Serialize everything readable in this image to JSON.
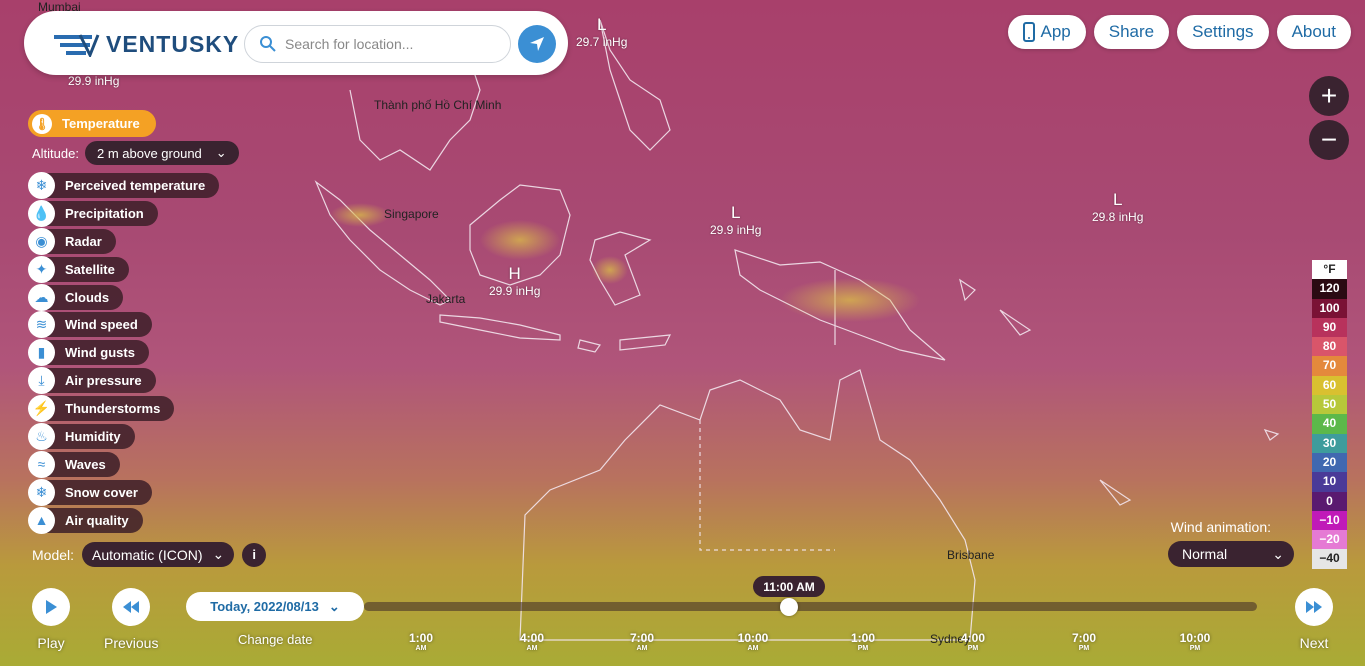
{
  "header": {
    "logo_text": "VENTUSKY",
    "search_placeholder": "Search for location...",
    "nav": [
      {
        "label": "App",
        "icon": "phone-icon"
      },
      {
        "label": "Share"
      },
      {
        "label": "Settings"
      },
      {
        "label": "About"
      }
    ]
  },
  "zoom": {
    "in": "+",
    "out": "−"
  },
  "map": {
    "cities": [
      "Mumbai",
      "Thành phố Hồ Chí Minh",
      "Singapore",
      "Jakarta",
      "Brisbane",
      "Sydney"
    ],
    "pressure_systems": [
      {
        "letter": "L",
        "value": "29.7 inHg"
      },
      {
        "letter": "",
        "value": "29.9 inHg"
      },
      {
        "letter": "L",
        "value": "29.9 inHg"
      },
      {
        "letter": "L",
        "value": "29.8 inHg"
      },
      {
        "letter": "H",
        "value": "29.9 inHg"
      }
    ]
  },
  "sidebar": {
    "active_layer": "Temperature",
    "altitude_label": "Altitude:",
    "altitude_value": "2 m above ground",
    "layers": [
      "Perceived temperature",
      "Precipitation",
      "Radar",
      "Satellite",
      "Clouds",
      "Wind speed",
      "Wind gusts",
      "Air pressure",
      "Thunderstorms",
      "Humidity",
      "Waves",
      "Snow cover",
      "Air quality"
    ],
    "model_label": "Model:",
    "model_value": "Automatic (ICON)",
    "info_icon": "i"
  },
  "legend": {
    "unit": "°F",
    "values": [
      "120",
      "100",
      "90",
      "80",
      "70",
      "60",
      "50",
      "40",
      "30",
      "20",
      "10",
      "0",
      "−10",
      "−20",
      "−40"
    ],
    "colors": [
      "#2a0a12",
      "#7a1235",
      "#b8325c",
      "#d9556a",
      "#e4893c",
      "#d9c030",
      "#b7c83a",
      "#5cb84a",
      "#3e9c9c",
      "#4068b0",
      "#4a3a98",
      "#5a1a70",
      "#c01ab8",
      "#e57ad4",
      "#e6e6e6"
    ]
  },
  "wind_animation": {
    "label": "Wind animation:",
    "value": "Normal"
  },
  "timeline": {
    "play": "Play",
    "previous": "Previous",
    "next": "Next",
    "date": "Today, 2022/08/13",
    "change_date": "Change date",
    "current_time": "11:00 AM",
    "progress": 0.475,
    "ticks": [
      {
        "time": "1:00",
        "ampm": "AM"
      },
      {
        "time": "4:00",
        "ampm": "AM"
      },
      {
        "time": "7:00",
        "ampm": "AM"
      },
      {
        "time": "10:00",
        "ampm": "AM"
      },
      {
        "time": "1:00",
        "ampm": "PM"
      },
      {
        "time": "4:00",
        "ampm": "PM"
      },
      {
        "time": "7:00",
        "ampm": "PM"
      },
      {
        "time": "10:00",
        "ampm": "PM"
      }
    ]
  }
}
